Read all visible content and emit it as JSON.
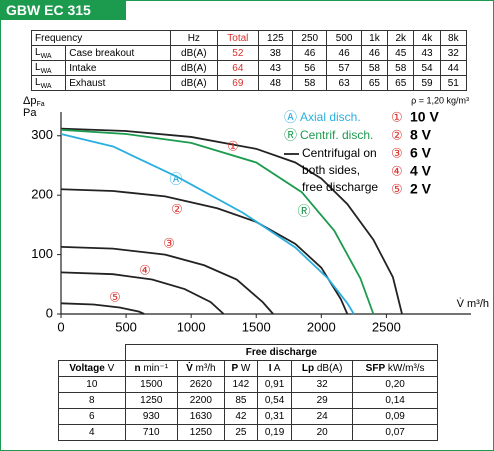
{
  "header": {
    "title": "GBW EC 315"
  },
  "sound_table": {
    "columns": [
      "Frequency",
      "Hz",
      "Total",
      "125",
      "250",
      "500",
      "1k",
      "2k",
      "4k",
      "8k"
    ],
    "rows": [
      {
        "symbol": "L",
        "subscript": "WA",
        "label": "Case breakout",
        "unit": "dB(A)",
        "total": 52,
        "values": [
          38,
          46,
          46,
          46,
          45,
          43,
          32
        ]
      },
      {
        "symbol": "L",
        "subscript": "WA",
        "label": "Intake",
        "unit": "dB(A)",
        "total": 64,
        "values": [
          43,
          56,
          57,
          58,
          58,
          54,
          44
        ]
      },
      {
        "symbol": "L",
        "subscript": "WA",
        "label": "Exhaust",
        "unit": "dB(A)",
        "total": 69,
        "values": [
          48,
          58,
          63,
          65,
          65,
          59,
          51
        ]
      }
    ]
  },
  "chart_data": {
    "type": "line",
    "y_label": "Δp",
    "y_label_subscript": "Fa",
    "y_unit": "Pa",
    "x_label": "V̇ m³/h",
    "annotation": "ρ = 1,20 kg/m³",
    "xlim": [
      0,
      3150
    ],
    "ylim": [
      0,
      340
    ],
    "xticks": [
      0,
      500,
      1000,
      1500,
      2000,
      2500
    ],
    "yticks": [
      0,
      100,
      200,
      300
    ],
    "legend_note": [
      "Centrifugal on",
      "both sides,",
      "free discharge"
    ],
    "series": [
      {
        "name": "10 V",
        "marker": "①",
        "color": "#222222",
        "x": [
          0,
          500,
          1000,
          1500,
          1800,
          2000,
          2200,
          2400,
          2550,
          2620
        ],
        "values": [
          312,
          308,
          298,
          278,
          255,
          228,
          185,
          125,
          62,
          0
        ]
      },
      {
        "name": "8 V",
        "marker": "②",
        "color": "#222222",
        "x": [
          0,
          400,
          800,
          1200,
          1500,
          1800,
          2000,
          2150,
          2200
        ],
        "values": [
          210,
          207,
          198,
          178,
          155,
          118,
          78,
          25,
          0
        ]
      },
      {
        "name": "6 V",
        "marker": "③",
        "color": "#222222",
        "x": [
          0,
          400,
          800,
          1100,
          1350,
          1550,
          1630
        ],
        "values": [
          113,
          110,
          100,
          82,
          58,
          20,
          0
        ]
      },
      {
        "name": "4 V",
        "marker": "④",
        "color": "#222222",
        "x": [
          0,
          400,
          700,
          950,
          1150,
          1250
        ],
        "values": [
          70,
          67,
          58,
          42,
          20,
          0
        ]
      },
      {
        "name": "2 V",
        "marker": "⑤",
        "color": "#222222",
        "x": [
          0,
          250,
          450,
          600,
          640
        ],
        "values": [
          18,
          16,
          11,
          4,
          0
        ]
      },
      {
        "name": "Axial disch.",
        "marker": "Ⓐ",
        "color": "#2aaee0",
        "x": [
          0,
          400,
          900,
          1400,
          1800,
          2050,
          2200,
          2250
        ],
        "values": [
          303,
          282,
          230,
          170,
          112,
          60,
          18,
          0
        ]
      },
      {
        "name": "Centrif. disch.",
        "marker": "Ⓡ",
        "color": "#1c9b4f",
        "x": [
          0,
          500,
          1000,
          1500,
          1850,
          2100,
          2300,
          2400
        ],
        "values": [
          310,
          303,
          288,
          255,
          205,
          140,
          60,
          0
        ]
      }
    ]
  },
  "discharge_table": {
    "title": "Free discharge",
    "columns": [
      {
        "name": "Voltage",
        "unit": "V"
      },
      {
        "name": "n",
        "unit": "min⁻¹"
      },
      {
        "name": "V̇",
        "unit": "m³/h"
      },
      {
        "name": "P",
        "unit": "W"
      },
      {
        "name": "I",
        "unit": "A"
      },
      {
        "name": "Lp",
        "unit": "dB(A)"
      },
      {
        "name": "SFP",
        "unit": "kW/m³/s"
      }
    ],
    "rows": [
      [
        10,
        1500,
        2620,
        142,
        "0,91",
        32,
        "0,20"
      ],
      [
        8,
        1250,
        2200,
        85,
        "0,54",
        29,
        "0,14"
      ],
      [
        6,
        930,
        1630,
        42,
        "0,31",
        24,
        "0,09"
      ],
      [
        4,
        710,
        1250,
        25,
        "0,19",
        20,
        "0,07"
      ]
    ]
  }
}
